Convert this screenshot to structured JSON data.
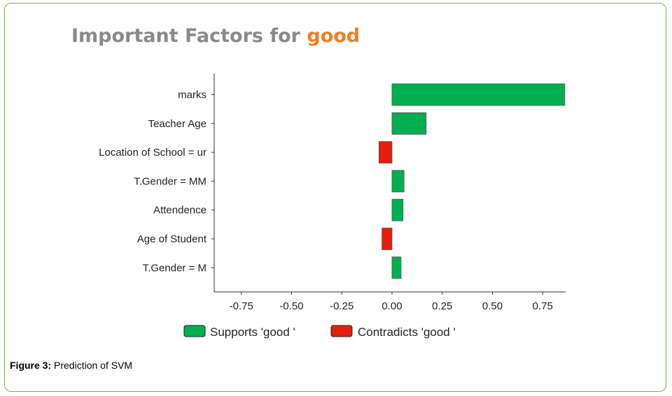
{
  "title": {
    "prefix": "Important Factors for ",
    "highlight": "good"
  },
  "caption": {
    "label": "Figure 3:",
    "text": " Prediction of SVM"
  },
  "colors": {
    "supports": "#00b050",
    "contradicts": "#e3200d",
    "title_grey": "#8a8a8a",
    "title_accent": "#f07f1e",
    "frame": "#7fb24a"
  },
  "chart_data": {
    "type": "bar",
    "orientation": "horizontal",
    "categories": [
      "marks",
      "Teacher Age",
      "Location of School = ur",
      "T.Gender = MM",
      "Attendence",
      "Age of  Student",
      "T.Gender = M"
    ],
    "values": [
      0.86,
      0.17,
      -0.065,
      0.06,
      0.055,
      -0.05,
      0.045
    ],
    "xlim": [
      -0.86,
      0.86
    ],
    "xticks": [
      -0.75,
      -0.5,
      -0.25,
      0.0,
      0.25,
      0.5,
      0.75
    ],
    "xtick_labels": [
      "-0.75",
      "-0.50",
      "-0.25",
      "0.00",
      "0.25",
      "0.50",
      "0.75"
    ],
    "legend": [
      "Supports 'good '",
      "Contradicts 'good '"
    ],
    "legend_position": "bottom",
    "grid": false
  }
}
